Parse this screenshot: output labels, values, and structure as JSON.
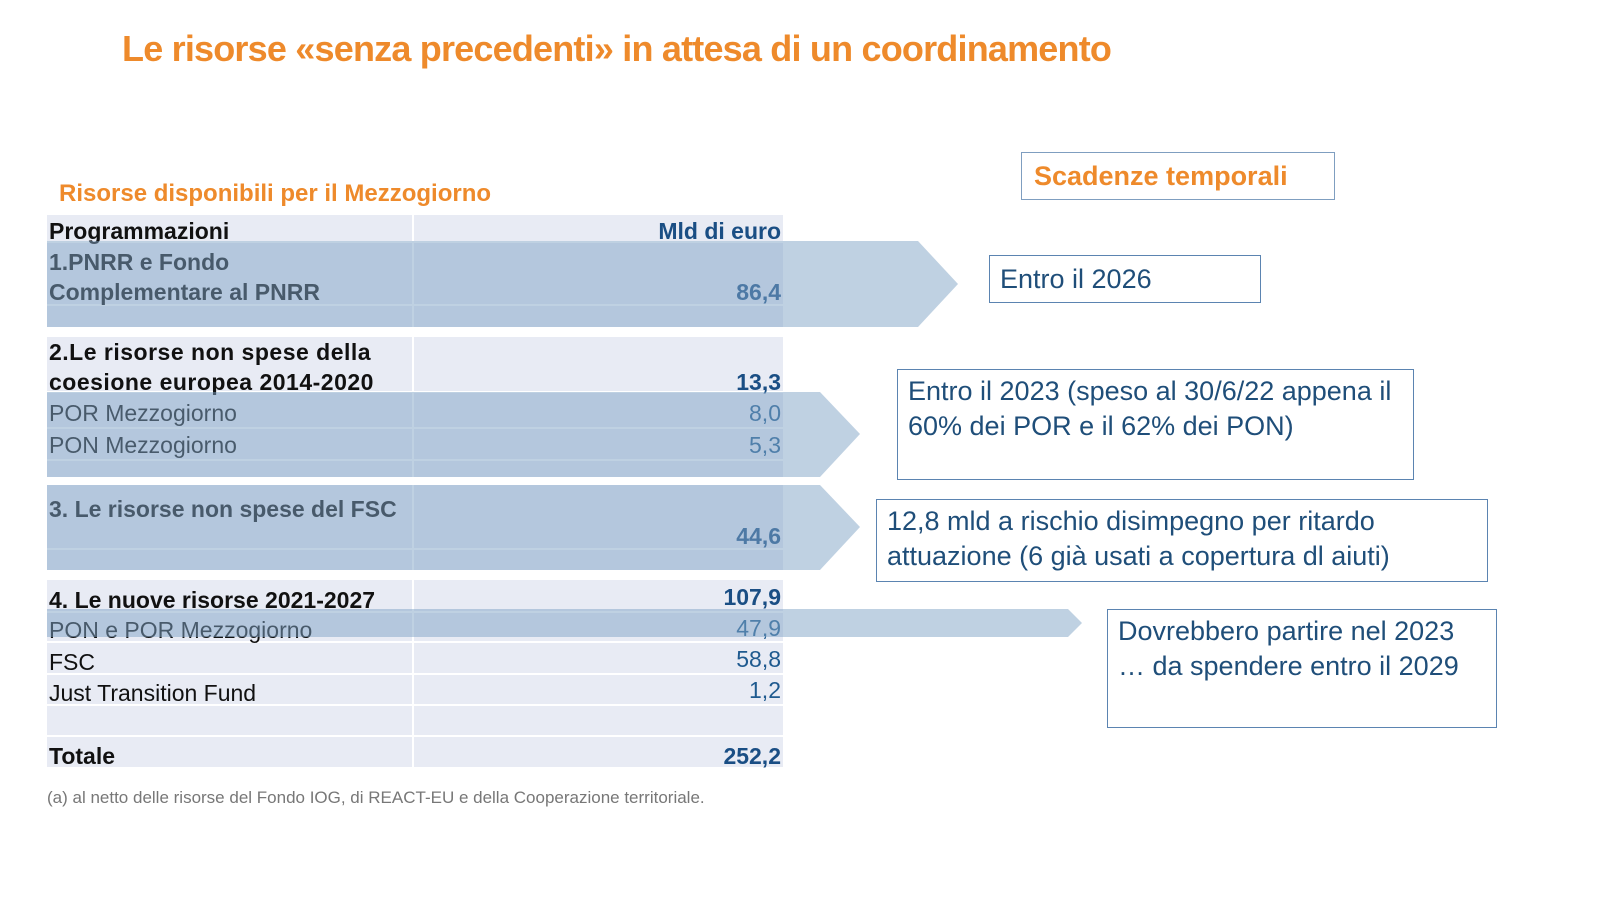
{
  "title": "Le risorse «senza precedenti» in attesa di un coordinamento",
  "subtitle": "Risorse disponibili per il Mezzogiorno",
  "table": {
    "headers": [
      "Programmazioni",
      "Mld di euro"
    ],
    "rows": [
      {
        "label": "1.PNRR e Fondo Complementare al PNRR",
        "value": "86,4"
      },
      {
        "label": "2.Le risorse non spese della coesione europea 2014-2020",
        "value": "13,3"
      },
      {
        "label": "POR Mezzogiorno",
        "value": "8,0"
      },
      {
        "label": "PON Mezzogiorno",
        "value": "5,3"
      },
      {
        "label": "3. Le risorse non spese del FSC",
        "value": "44,6"
      },
      {
        "label": "4. Le nuove risorse 2021-2027",
        "value": "107,9"
      },
      {
        "label": "PON e POR Mezzogiorno",
        "value": "47,9"
      },
      {
        "label": "FSC",
        "value": "58,8"
      },
      {
        "label": "Just Transition Fund",
        "value": "1,2"
      },
      {
        "label": "Totale",
        "value": "252,2"
      }
    ]
  },
  "deadlines": {
    "heading": "Scadenze temporali",
    "items": [
      "Entro il 2026",
      "Entro il 2023 (speso al 30/6/22 appena  il 60% dei POR e il  62% dei PON)",
      "12,8 mld a rischio disimpegno per ritardo attuazione (6 già usati a copertura dl aiuti)",
      "Dovrebbero partire nel 2023 … da spendere entro il 2029"
    ]
  },
  "note": "(a) al netto delle risorse del Fondo IOG, di REACT-EU e della Cooperazione territoriale.",
  "colors": {
    "accent": "#ee8a2b",
    "value_blue": "#1f5a8f",
    "table_bg": "#e8ebf4",
    "arrow": "#9fbbd3"
  }
}
